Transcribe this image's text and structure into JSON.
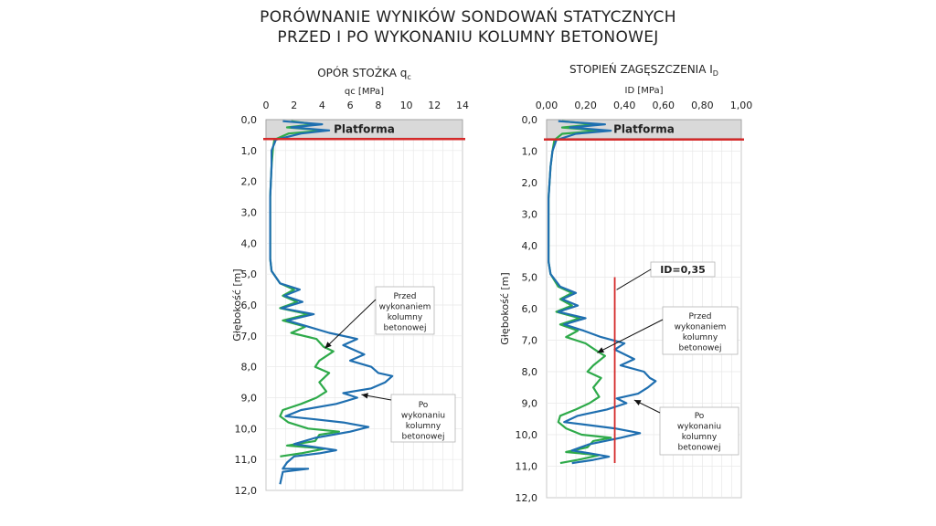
{
  "title_line1": "PORÓWNANIE WYNIKÓW SONDOWAŃ STATYCZNYCH",
  "title_line2": "PRZED I PO WYKONANIU KOLUMNY BETONOWEJ",
  "colors": {
    "before": "#2EAA4A",
    "after": "#1F6FB0",
    "marker": "#D42A2A",
    "platform_fill": "#D9D9D9"
  },
  "chart_data": [
    {
      "type": "line",
      "title": "OPÓR STOŻKA q",
      "title_sub": "c",
      "xlabel": "qc [MPa]",
      "ylabel": "Głębokość  [m]",
      "xlim": [
        0,
        14
      ],
      "ylim": [
        12,
        0
      ],
      "xticks": [
        "0",
        "2",
        "4",
        "6",
        "8",
        "10",
        "12",
        "14"
      ],
      "yticks": [
        "0,0",
        "1,0",
        "2,0",
        "3,0",
        "4,0",
        "5,0",
        "6,0",
        "7,0",
        "8,0",
        "9,0",
        "10,0",
        "11,0",
        "12,0"
      ],
      "grid": true,
      "platform": {
        "label": "Platforma",
        "depth_top": 0.0,
        "depth_bottom": 0.6
      },
      "series": [
        {
          "name": "Przed wykonaniem kolumny betonowej",
          "key": "before",
          "points": [
            [
              1.8,
              0.05
            ],
            [
              3.5,
              0.15
            ],
            [
              1.5,
              0.25
            ],
            [
              4.2,
              0.35
            ],
            [
              1.6,
              0.45
            ],
            [
              0.6,
              0.65
            ],
            [
              0.5,
              0.9
            ],
            [
              0.4,
              1.5
            ],
            [
              0.3,
              2.5
            ],
            [
              0.3,
              3.5
            ],
            [
              0.3,
              4.5
            ],
            [
              0.4,
              4.9
            ],
            [
              1.0,
              5.3
            ],
            [
              2.0,
              5.5
            ],
            [
              1.2,
              5.7
            ],
            [
              2.2,
              5.9
            ],
            [
              1.0,
              6.1
            ],
            [
              3.0,
              6.3
            ],
            [
              1.2,
              6.5
            ],
            [
              2.8,
              6.7
            ],
            [
              1.8,
              6.9
            ],
            [
              3.6,
              7.1
            ],
            [
              4.1,
              7.35
            ],
            [
              4.8,
              7.5
            ],
            [
              3.8,
              7.8
            ],
            [
              3.5,
              8.0
            ],
            [
              4.5,
              8.2
            ],
            [
              3.8,
              8.5
            ],
            [
              4.3,
              8.8
            ],
            [
              3.6,
              9.0
            ],
            [
              2.5,
              9.2
            ],
            [
              1.2,
              9.4
            ],
            [
              1.0,
              9.6
            ],
            [
              1.6,
              9.8
            ],
            [
              3.0,
              10.0
            ],
            [
              5.2,
              10.1
            ],
            [
              3.8,
              10.2
            ],
            [
              3.5,
              10.4
            ],
            [
              1.5,
              10.55
            ],
            [
              4.2,
              10.65
            ],
            [
              2.5,
              10.8
            ],
            [
              1.0,
              10.9
            ]
          ]
        },
        {
          "name": "Po wykonaniu kolumny betonowej",
          "key": "after",
          "points": [
            [
              1.2,
              0.05
            ],
            [
              4.0,
              0.15
            ],
            [
              1.8,
              0.25
            ],
            [
              4.5,
              0.35
            ],
            [
              2.5,
              0.45
            ],
            [
              0.7,
              0.65
            ],
            [
              0.4,
              1.0
            ],
            [
              0.4,
              1.5
            ],
            [
              0.3,
              2.5
            ],
            [
              0.3,
              3.5
            ],
            [
              0.3,
              4.5
            ],
            [
              0.4,
              4.9
            ],
            [
              1.0,
              5.3
            ],
            [
              2.4,
              5.5
            ],
            [
              1.3,
              5.7
            ],
            [
              2.6,
              5.9
            ],
            [
              1.1,
              6.1
            ],
            [
              3.4,
              6.3
            ],
            [
              1.5,
              6.5
            ],
            [
              3.0,
              6.7
            ],
            [
              4.5,
              6.9
            ],
            [
              6.5,
              7.1
            ],
            [
              5.5,
              7.3
            ],
            [
              7.0,
              7.6
            ],
            [
              6.0,
              7.8
            ],
            [
              7.5,
              8.0
            ],
            [
              8.0,
              8.2
            ],
            [
              9.0,
              8.3
            ],
            [
              8.5,
              8.5
            ],
            [
              7.5,
              8.7
            ],
            [
              5.5,
              8.85
            ],
            [
              6.5,
              9.0
            ],
            [
              5.0,
              9.2
            ],
            [
              2.5,
              9.4
            ],
            [
              1.4,
              9.6
            ],
            [
              3.5,
              9.7
            ],
            [
              5.5,
              9.8
            ],
            [
              7.3,
              9.95
            ],
            [
              6.0,
              10.1
            ],
            [
              3.5,
              10.3
            ],
            [
              2.0,
              10.5
            ],
            [
              3.5,
              10.6
            ],
            [
              5.0,
              10.7
            ],
            [
              3.8,
              10.8
            ],
            [
              2.0,
              10.9
            ],
            [
              1.5,
              11.1
            ],
            [
              1.2,
              11.3
            ],
            [
              3.0,
              11.3
            ],
            [
              1.2,
              11.4
            ],
            [
              1.0,
              11.8
            ]
          ]
        }
      ],
      "annotations": [
        {
          "text": "Przed wykonaniem kolumny betonowej",
          "lines": [
            "Przed",
            "wykonaniem",
            "kolumny",
            "betonowej"
          ],
          "points_to_x": 4.2,
          "points_to_y": 7.4
        },
        {
          "text": "Po wykonaniu kolumny betonowej",
          "lines": [
            "Po",
            "wykonaniu",
            "kolumny",
            "betonowej"
          ],
          "points_to_x": 6.8,
          "points_to_y": 8.9
        }
      ]
    },
    {
      "type": "line",
      "title": "STOPIEŃ ZAGĘSZCZENIA I",
      "title_sub": "D",
      "xlabel": "ID [MPa]",
      "ylabel": "Głębokość  [m]",
      "xlim": [
        0,
        1
      ],
      "ylim": [
        12,
        0
      ],
      "xticks": [
        "0,00",
        "0,20",
        "0,40",
        "0,60",
        "0,80",
        "1,00"
      ],
      "yticks": [
        "0,0",
        "1,0",
        "2,0",
        "3,0",
        "4,0",
        "5,0",
        "6,0",
        "7,0",
        "8,0",
        "9,0",
        "10,0",
        "11,0",
        "12,0"
      ],
      "grid": true,
      "platform": {
        "label": "Platforma",
        "depth_top": 0.0,
        "depth_bottom": 0.6
      },
      "reference_line": {
        "label": "ID=0,35",
        "x": 0.35,
        "from_depth": 5.0,
        "to_depth": 10.9
      },
      "series": [
        {
          "name": "Przed wykonaniem kolumny betonowej",
          "key": "before",
          "points": [
            [
              0.08,
              0.05
            ],
            [
              0.25,
              0.15
            ],
            [
              0.08,
              0.25
            ],
            [
              0.28,
              0.35
            ],
            [
              0.08,
              0.45
            ],
            [
              0.04,
              0.65
            ],
            [
              0.03,
              1.0
            ],
            [
              0.02,
              1.5
            ],
            [
              0.01,
              2.5
            ],
            [
              0.01,
              3.5
            ],
            [
              0.01,
              4.5
            ],
            [
              0.02,
              4.9
            ],
            [
              0.06,
              5.3
            ],
            [
              0.13,
              5.5
            ],
            [
              0.07,
              5.7
            ],
            [
              0.13,
              5.9
            ],
            [
              0.05,
              6.1
            ],
            [
              0.17,
              6.3
            ],
            [
              0.07,
              6.5
            ],
            [
              0.16,
              6.7
            ],
            [
              0.1,
              6.9
            ],
            [
              0.2,
              7.1
            ],
            [
              0.26,
              7.35
            ],
            [
              0.3,
              7.5
            ],
            [
              0.24,
              7.8
            ],
            [
              0.21,
              8.0
            ],
            [
              0.28,
              8.2
            ],
            [
              0.24,
              8.5
            ],
            [
              0.27,
              8.8
            ],
            [
              0.22,
              9.0
            ],
            [
              0.15,
              9.2
            ],
            [
              0.07,
              9.4
            ],
            [
              0.06,
              9.6
            ],
            [
              0.1,
              9.8
            ],
            [
              0.18,
              10.0
            ],
            [
              0.33,
              10.1
            ],
            [
              0.24,
              10.2
            ],
            [
              0.21,
              10.4
            ],
            [
              0.1,
              10.55
            ],
            [
              0.27,
              10.65
            ],
            [
              0.16,
              10.8
            ],
            [
              0.07,
              10.9
            ]
          ]
        },
        {
          "name": "Po wykonaniu kolumny betonowej",
          "key": "after",
          "points": [
            [
              0.06,
              0.05
            ],
            [
              0.3,
              0.15
            ],
            [
              0.12,
              0.25
            ],
            [
              0.33,
              0.35
            ],
            [
              0.15,
              0.45
            ],
            [
              0.05,
              0.65
            ],
            [
              0.03,
              1.0
            ],
            [
              0.02,
              1.5
            ],
            [
              0.01,
              2.5
            ],
            [
              0.01,
              3.5
            ],
            [
              0.01,
              4.5
            ],
            [
              0.02,
              4.9
            ],
            [
              0.07,
              5.3
            ],
            [
              0.15,
              5.5
            ],
            [
              0.08,
              5.7
            ],
            [
              0.16,
              5.9
            ],
            [
              0.06,
              6.1
            ],
            [
              0.2,
              6.3
            ],
            [
              0.09,
              6.5
            ],
            [
              0.19,
              6.7
            ],
            [
              0.28,
              6.9
            ],
            [
              0.4,
              7.1
            ],
            [
              0.35,
              7.3
            ],
            [
              0.45,
              7.6
            ],
            [
              0.38,
              7.8
            ],
            [
              0.5,
              8.0
            ],
            [
              0.53,
              8.2
            ],
            [
              0.56,
              8.3
            ],
            [
              0.52,
              8.5
            ],
            [
              0.47,
              8.7
            ],
            [
              0.36,
              8.85
            ],
            [
              0.41,
              9.0
            ],
            [
              0.31,
              9.2
            ],
            [
              0.16,
              9.4
            ],
            [
              0.09,
              9.6
            ],
            [
              0.22,
              9.7
            ],
            [
              0.35,
              9.8
            ],
            [
              0.48,
              9.95
            ],
            [
              0.38,
              10.1
            ],
            [
              0.22,
              10.3
            ],
            [
              0.13,
              10.5
            ],
            [
              0.23,
              10.6
            ],
            [
              0.32,
              10.7
            ],
            [
              0.24,
              10.8
            ],
            [
              0.13,
              10.9
            ]
          ]
        }
      ],
      "annotations": [
        {
          "text": "Przed wykonaniem kolumny betonowej",
          "lines": [
            "Przed",
            "wykonaniem",
            "kolumny",
            "betonowej"
          ],
          "points_to_x": 0.26,
          "points_to_y": 7.4
        },
        {
          "text": "Po wykonaniu kolumny betonowej",
          "lines": [
            "Po",
            "wykonaniu",
            "kolumny",
            "betonowej"
          ],
          "points_to_x": 0.45,
          "points_to_y": 8.9
        }
      ]
    }
  ]
}
